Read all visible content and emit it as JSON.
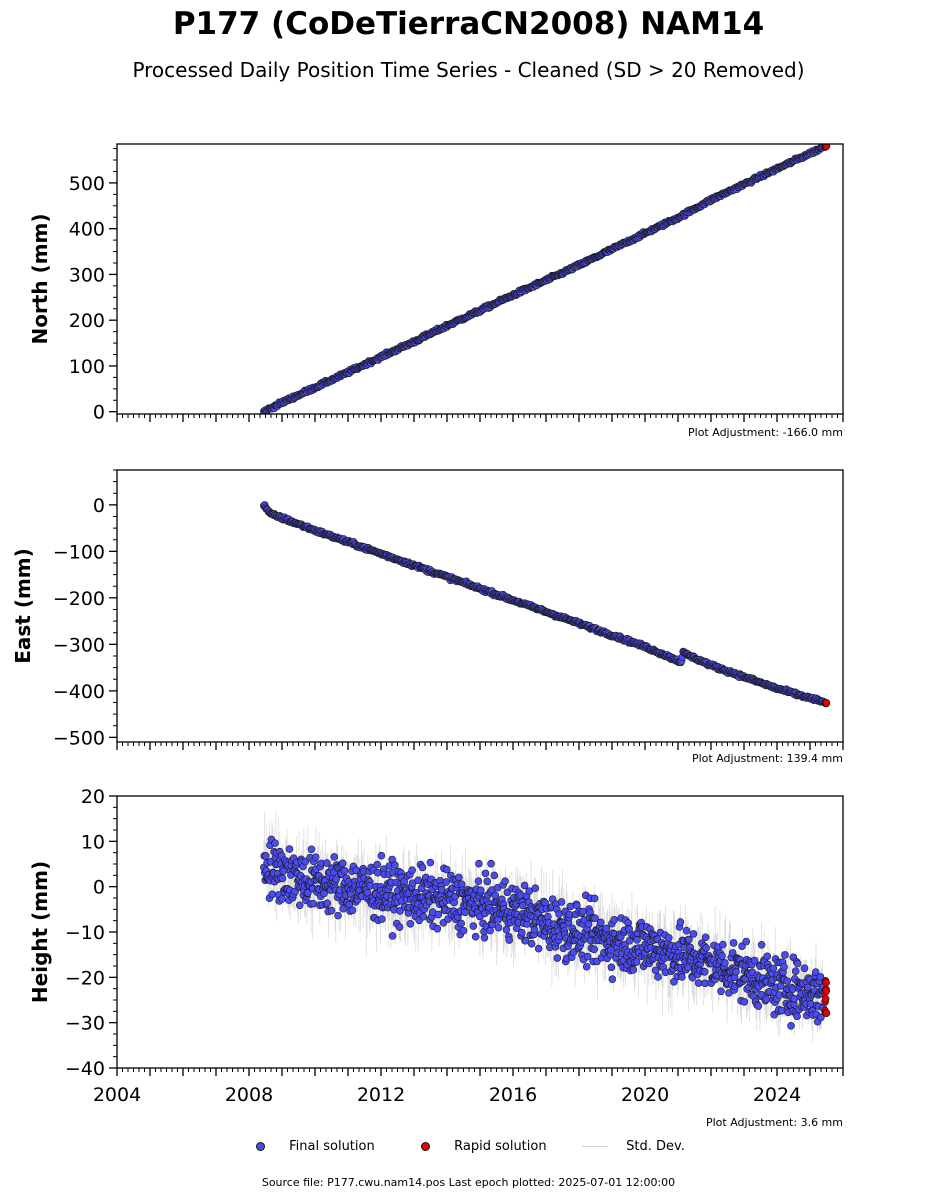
{
  "title": "P177 (CoDeTierraCN2008) NAM14",
  "subtitle": "Processed Daily Position Time Series - Cleaned (SD > 20 Removed)",
  "legend": {
    "final": "Final solution",
    "rapid": "Rapid solution",
    "std": "Std. Dev."
  },
  "footer": "Source file: P177.cwu.nam14.pos  Last epoch plotted: 2025-07-01 12:00:00",
  "colors": {
    "final": "#4b4bf2",
    "rapid": "#e60000",
    "std": "#bdbdbd",
    "edge": "#1a1a1a"
  },
  "chart_data": [
    {
      "type": "scatter",
      "ylabel": "North (mm)",
      "xlim": [
        2004,
        2026
      ],
      "ylim": [
        -5,
        585
      ],
      "yticks": [
        0,
        100,
        200,
        300,
        400,
        500
      ],
      "xticks": [
        2004,
        2008,
        2012,
        2016,
        2020,
        2024
      ],
      "adjustment": "Plot Adjustment: -166.0 mm",
      "show_xticklabels": false,
      "series": [
        {
          "name": "Final solution",
          "x": [
            2008.45,
            2009.0,
            2010.0,
            2011.0,
            2012.0,
            2013.0,
            2014.0,
            2015.0,
            2016.0,
            2017.0,
            2018.0,
            2019.0,
            2020.0,
            2021.0,
            2022.0,
            2023.0,
            2024.0,
            2025.4
          ],
          "y": [
            0,
            20,
            53,
            86,
            120,
            153,
            188,
            221,
            255,
            287,
            320,
            355,
            390,
            424,
            463,
            497,
            531,
            578
          ]
        },
        {
          "name": "Rapid solution",
          "x": [
            2025.45,
            2025.5
          ],
          "y": [
            579,
            581
          ]
        }
      ]
    },
    {
      "type": "scatter",
      "ylabel": "East (mm)",
      "xlim": [
        2004,
        2026
      ],
      "ylim": [
        -510,
        75
      ],
      "yticks": [
        0,
        -100,
        -200,
        -300,
        -400,
        -500
      ],
      "xticks": [
        2004,
        2008,
        2012,
        2016,
        2020,
        2024
      ],
      "adjustment": "Plot Adjustment: 139.4 mm",
      "show_xticklabels": false,
      "series": [
        {
          "name": "Final solution",
          "x": [
            2008.45,
            2008.65,
            2009.0,
            2010.0,
            2011.0,
            2012.0,
            2013.0,
            2014.0,
            2015.0,
            2016.0,
            2017.0,
            2018.0,
            2019.0,
            2020.0,
            2021.0,
            2021.1,
            2021.15,
            2022.0,
            2023.0,
            2024.0,
            2025.4
          ],
          "y": [
            0,
            -20,
            -28,
            -55,
            -80,
            -105,
            -130,
            -155,
            -180,
            -205,
            -230,
            -255,
            -280,
            -305,
            -335,
            -338,
            -318,
            -345,
            -370,
            -395,
            -424
          ]
        },
        {
          "name": "Rapid solution",
          "x": [
            2025.45,
            2025.5
          ],
          "y": [
            -425,
            -427
          ]
        }
      ]
    },
    {
      "type": "scatter",
      "ylabel": "Height (mm)",
      "xlim": [
        2004,
        2026
      ],
      "ylim": [
        -40,
        20
      ],
      "yticks": [
        20,
        10,
        0,
        -10,
        -20,
        -30,
        -40
      ],
      "xticks": [
        2004,
        2008,
        2012,
        2016,
        2020,
        2024
      ],
      "adjustment": "Plot Adjustment: 3.6 mm",
      "show_xticklabels": true,
      "series": [
        {
          "name": "Final solution",
          "x": [
            2008.45,
            2009.0,
            2010.0,
            2011.0,
            2012.0,
            2013.0,
            2014.0,
            2015.0,
            2016.0,
            2017.0,
            2018.0,
            2019.0,
            2020.0,
            2021.0,
            2022.0,
            2023.0,
            2024.0,
            2025.4
          ],
          "y": [
            5,
            3,
            1,
            0,
            -1,
            -2,
            -3,
            -4,
            -5,
            -8,
            -10,
            -12,
            -13,
            -15,
            -17,
            -19,
            -22,
            -24
          ]
        },
        {
          "name": "Rapid solution",
          "x": [
            2025.45,
            2025.5
          ],
          "y": [
            -23,
            -24
          ]
        }
      ]
    }
  ]
}
